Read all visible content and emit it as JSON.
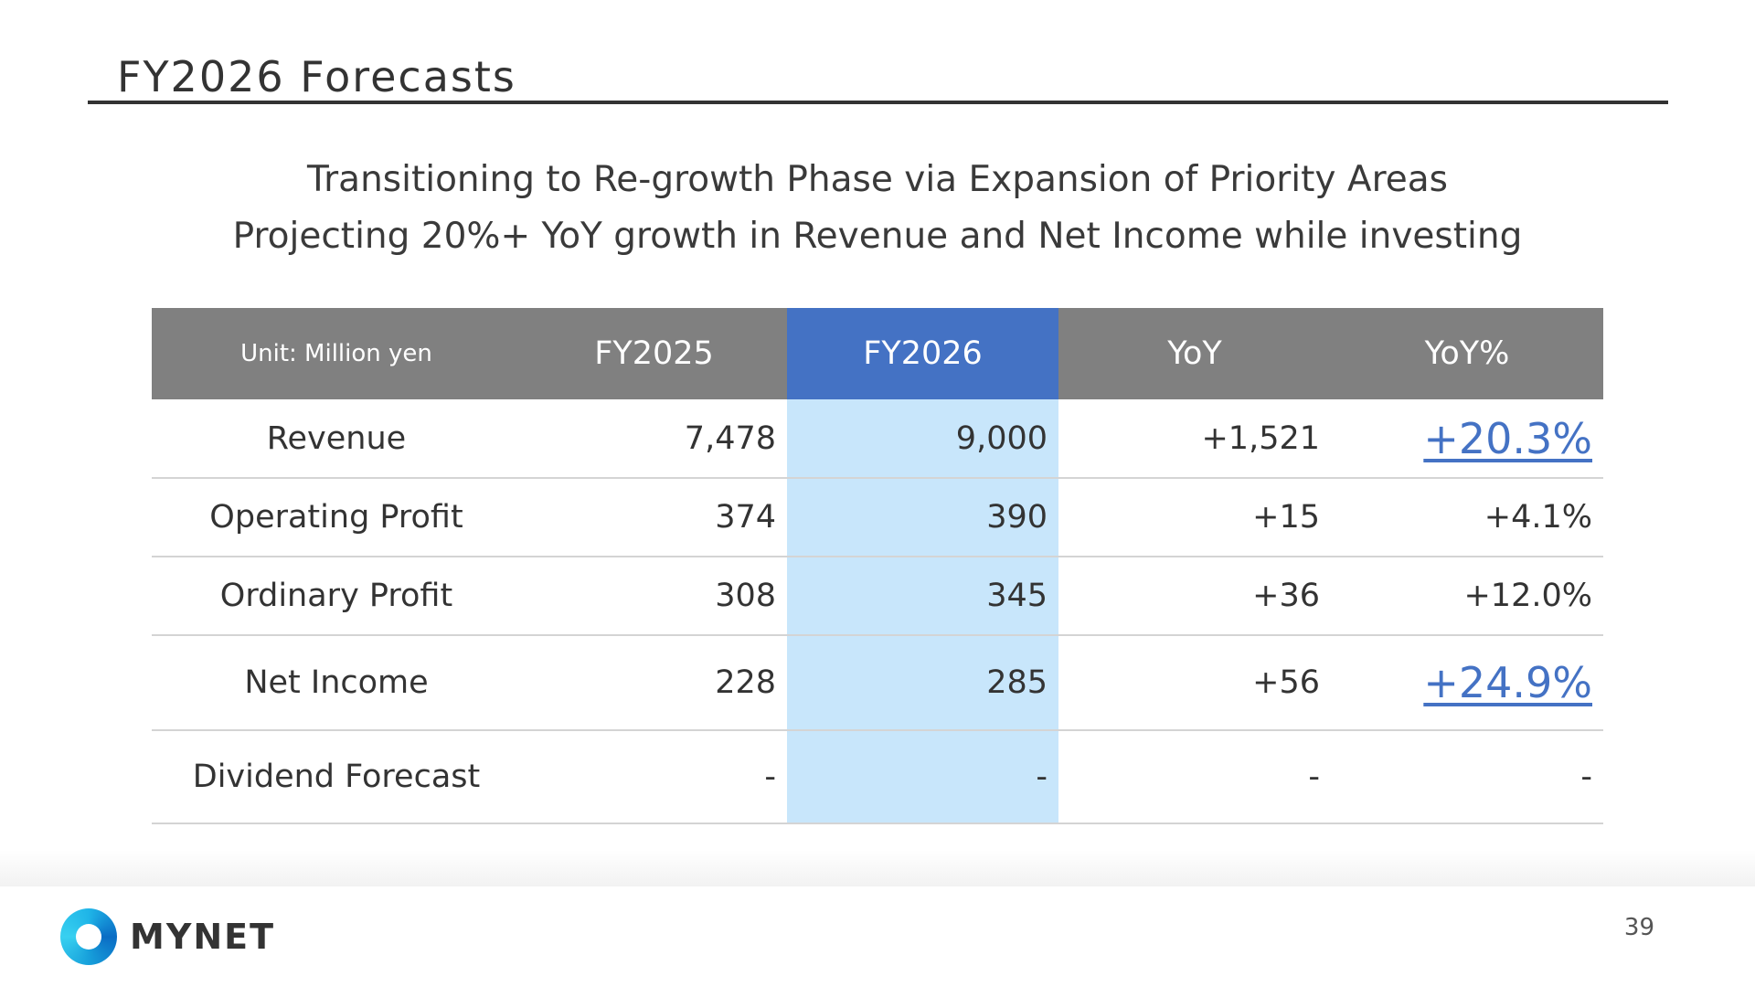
{
  "header": {
    "title": "FY2026 Forecasts"
  },
  "subtitle": {
    "line1": "Transitioning to Re-growth Phase via Expansion of Priority Areas",
    "line2": "Projecting 20%+ YoY growth in Revenue and Net Income while investing"
  },
  "table": {
    "columns": [
      "Unit: Million yen",
      "FY2025",
      "FY2026",
      "YoY",
      "YoY%"
    ],
    "rows": [
      {
        "label": "Revenue",
        "fy2025": "7,478",
        "fy2026": "9,000",
        "yoy": "+1,521",
        "yoy_pct": "+20.3%"
      },
      {
        "label": "Operating Profit",
        "fy2025": "374",
        "fy2026": "390",
        "yoy": "+15",
        "yoy_pct": "+4.1%"
      },
      {
        "label": "Ordinary Profit",
        "fy2025": "308",
        "fy2026": "345",
        "yoy": "+36",
        "yoy_pct": "+12.0%"
      },
      {
        "label": "Net Income",
        "fy2025": "228",
        "fy2026": "285",
        "yoy": "+56",
        "yoy_pct": "+24.9%"
      },
      {
        "label": "Dividend Forecast",
        "fy2025": "-",
        "fy2026": "-",
        "yoy": "-",
        "yoy_pct": "-"
      }
    ]
  },
  "footer": {
    "brand": "MYNET",
    "page_number": "39"
  },
  "colors": {
    "header_gray": "#808080",
    "highlight_blue": "#4472c4",
    "band_light_blue": "#c8e6fb",
    "text": "#333333"
  }
}
